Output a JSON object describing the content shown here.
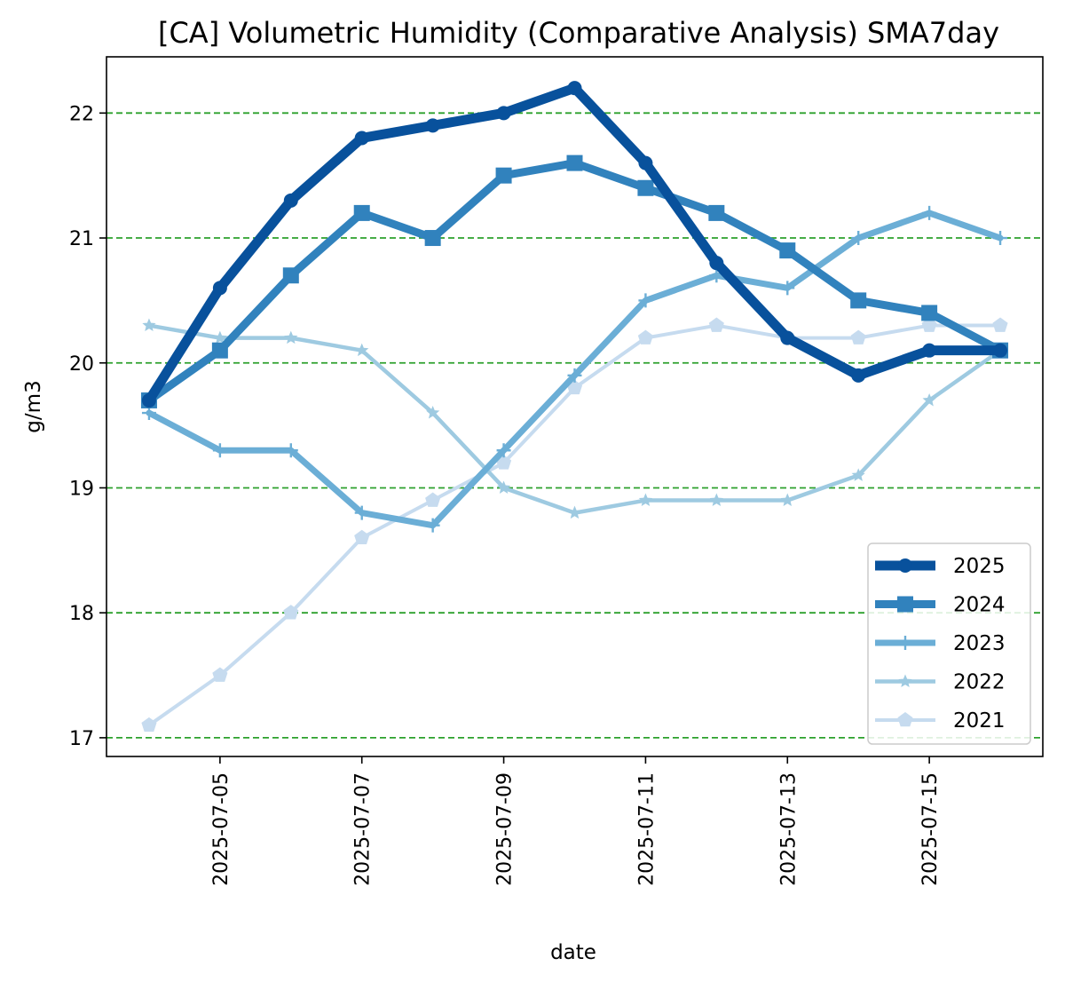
{
  "chart_data": {
    "type": "line",
    "title": "[CA] Volumetric Humidity (Comparative Analysis) SMA7day",
    "xlabel": "date",
    "ylabel": "g/m3",
    "x": [
      "2025-07-04",
      "2025-07-05",
      "2025-07-06",
      "2025-07-07",
      "2025-07-08",
      "2025-07-09",
      "2025-07-10",
      "2025-07-11",
      "2025-07-12",
      "2025-07-13",
      "2025-07-14",
      "2025-07-15",
      "2025-07-16"
    ],
    "x_ticks": [
      "2025-07-05",
      "2025-07-07",
      "2025-07-09",
      "2025-07-11",
      "2025-07-13",
      "2025-07-15"
    ],
    "xlim": [
      "2025-07-03.4",
      "2025-07-16.6"
    ],
    "ylim": [
      16.85,
      22.45
    ],
    "y_ticks": [
      17,
      18,
      19,
      20,
      21,
      22
    ],
    "grid": {
      "axis": "y",
      "style": "dashed",
      "color": "#2ca02c"
    },
    "legend_position": "lower right",
    "series": [
      {
        "name": "2025",
        "color": "#08519c",
        "marker": "circle",
        "values": [
          19.7,
          20.6,
          21.3,
          21.8,
          21.9,
          22.0,
          22.2,
          21.6,
          20.8,
          20.2,
          19.9,
          20.1,
          20.1
        ]
      },
      {
        "name": "2024",
        "color": "#3182bd",
        "marker": "square",
        "values": [
          19.7,
          20.1,
          20.7,
          21.2,
          21.0,
          21.5,
          21.6,
          21.4,
          21.2,
          20.9,
          20.5,
          20.4,
          20.1
        ]
      },
      {
        "name": "2023",
        "color": "#6baed6",
        "marker": "plus",
        "values": [
          19.6,
          19.3,
          19.3,
          18.8,
          18.7,
          19.3,
          19.9,
          20.5,
          20.7,
          20.6,
          21.0,
          21.2,
          21.0
        ]
      },
      {
        "name": "2022",
        "color": "#9ecae1",
        "marker": "star",
        "values": [
          20.3,
          20.2,
          20.2,
          20.1,
          19.6,
          19.0,
          18.8,
          18.9,
          18.9,
          18.9,
          19.1,
          19.7,
          20.1
        ]
      },
      {
        "name": "2021",
        "color": "#c6dbef",
        "marker": "pentagon",
        "values": [
          17.1,
          17.5,
          18.0,
          18.6,
          18.9,
          19.2,
          19.8,
          20.2,
          20.3,
          20.2,
          20.2,
          20.3,
          20.3
        ]
      }
    ]
  }
}
